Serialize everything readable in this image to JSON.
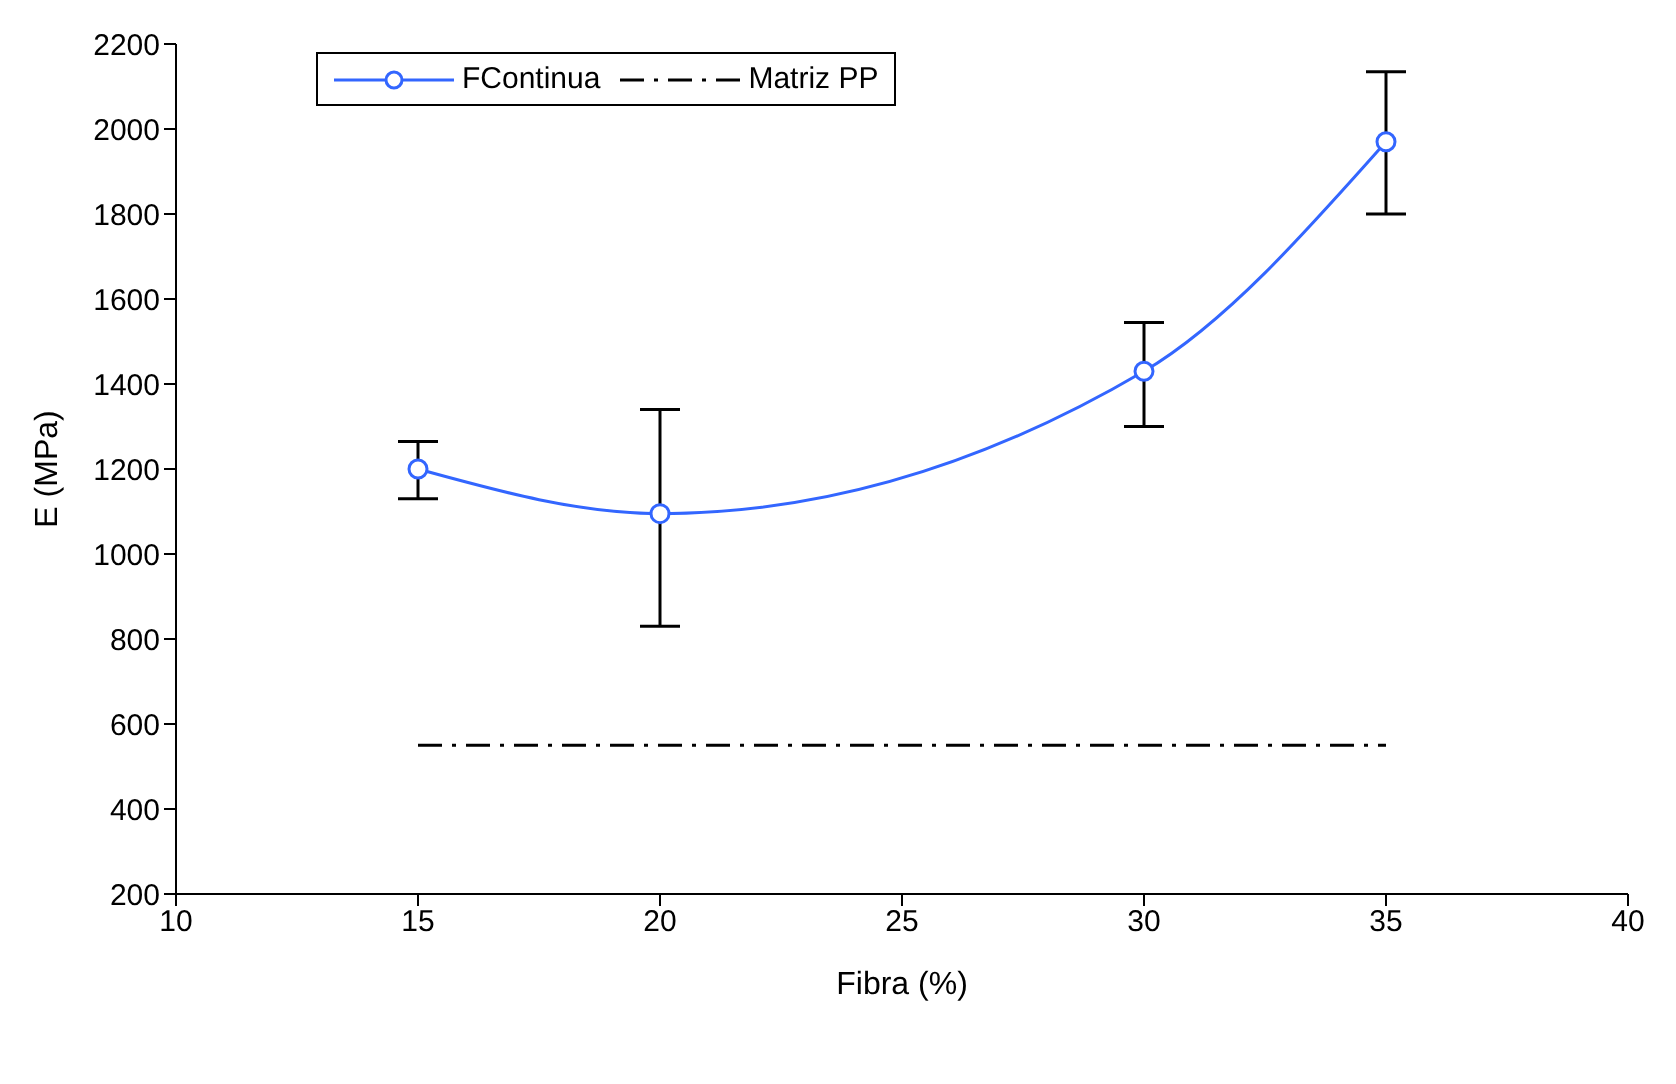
{
  "chart_data": {
    "type": "line",
    "xlabel": "Fibra (%)",
    "ylabel": "E (MPa)",
    "xlim": [
      10,
      40
    ],
    "xticks": [
      10,
      15,
      20,
      25,
      30,
      35,
      40
    ],
    "ylim": [
      200,
      2200
    ],
    "yticks": [
      200,
      400,
      600,
      800,
      1000,
      1200,
      1400,
      1600,
      1800,
      2000,
      2200
    ],
    "grid": false,
    "legend": "top left",
    "series": [
      {
        "name": "FContinua",
        "color": "#3366ff",
        "x": [
          15,
          20,
          30,
          35
        ],
        "values": [
          1200,
          1095,
          1430,
          1970
        ],
        "errors": [
          [
            1130,
            1265
          ],
          [
            830,
            1340
          ],
          [
            1300,
            1545
          ],
          [
            1800,
            2135
          ]
        ],
        "marker": "circle",
        "line_style": "solid"
      },
      {
        "name": "Matriz PP",
        "color": "#000000",
        "x": [
          15,
          35
        ],
        "values": [
          550,
          550
        ],
        "marker": "none",
        "line_style": "dashdot"
      }
    ]
  }
}
